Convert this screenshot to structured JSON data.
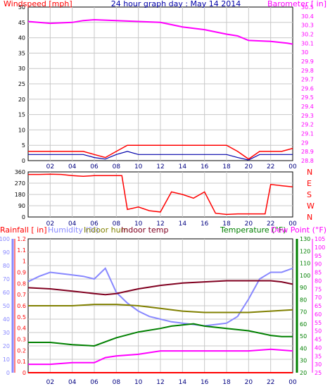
{
  "colors": {
    "wind": "#ff0000",
    "gust_line": "#0000aa",
    "baro": "#ff00ff",
    "title": "#0000aa",
    "direction": "#ff0000",
    "rain": "#ff0000",
    "humidity": "#8888ff",
    "indoor_hum": "#808000",
    "indoor_temp": "#800020",
    "temperature": "#008000",
    "dewpoint": "#ff00ff",
    "solar": "#ffff66",
    "grid": "#c8c8c8"
  },
  "chart_data": [
    {
      "type": "line",
      "title": "24 hour graph day : May 14 2014",
      "left_axis": {
        "label": "Windspeed [mph]",
        "ticks": [
          "0",
          "5",
          "10",
          "15",
          "20",
          "25",
          "30",
          "35",
          "40",
          "45",
          "50"
        ],
        "range": [
          0,
          50
        ]
      },
      "right_axis": {
        "label": "Barometer [ in]",
        "ticks": [
          "28.8",
          "28.9",
          "29",
          "29.1",
          "29.2",
          "29.3",
          "29.4",
          "29.5",
          "29.6",
          "29.7",
          "29.8",
          "29.9",
          "30",
          "30.1",
          "30.2",
          "30.3",
          "30.4",
          "30.5"
        ],
        "range": [
          28.8,
          30.5
        ]
      },
      "x_ticks": [
        "02",
        "04",
        "06",
        "08",
        "10",
        "12",
        "14",
        "16",
        "18",
        "20",
        "22",
        "00"
      ],
      "series": [
        {
          "axis": "right",
          "x": [
            0,
            2,
            4,
            5,
            6,
            8,
            10,
            12,
            14,
            16,
            18,
            19,
            20,
            22,
            23.5,
            24
          ],
          "values": [
            30.34,
            30.32,
            30.33,
            30.35,
            30.36,
            30.35,
            30.34,
            30.33,
            30.28,
            30.25,
            30.2,
            30.18,
            30.13,
            30.12,
            30.1,
            30.09
          ]
        },
        {
          "axis": "left",
          "x": [
            0,
            1,
            2,
            3,
            4,
            5,
            6,
            7,
            8,
            9,
            10,
            11,
            12,
            13,
            14,
            15,
            16,
            17,
            18,
            19,
            20,
            21,
            22,
            23,
            24
          ],
          "values": [
            3,
            3,
            3,
            3,
            3,
            3,
            2,
            1,
            3,
            5,
            5,
            5,
            5,
            5,
            5,
            5,
            5,
            5,
            5,
            3,
            0.5,
            3,
            3,
            3,
            4
          ]
        },
        {
          "axis": "left",
          "x": [
            0,
            1,
            2,
            3,
            4,
            5,
            6,
            7,
            8,
            9,
            10,
            11,
            12,
            13,
            14,
            15,
            16,
            17,
            18,
            19,
            20,
            21,
            22,
            23,
            24
          ],
          "values": [
            2,
            2,
            2,
            2,
            2,
            2,
            1,
            0.5,
            2,
            3,
            2,
            2,
            2,
            2,
            2,
            2,
            2,
            2,
            2,
            1,
            0.2,
            2,
            2,
            2,
            2
          ]
        }
      ]
    },
    {
      "type": "line",
      "left_ticks": [
        "0",
        "90",
        "180",
        "270",
        "360"
      ],
      "left_range": [
        0,
        360
      ],
      "right_labels": [
        "N",
        "W",
        "S",
        "E",
        "N"
      ],
      "x_ticks": [
        "02",
        "04",
        "06",
        "08",
        "10",
        "12",
        "14",
        "16",
        "18",
        "20",
        "22",
        "00"
      ],
      "series": [
        {
          "x": [
            0,
            1,
            2,
            3,
            4,
            5,
            6,
            7,
            8,
            8.5,
            9,
            10,
            11,
            12,
            13,
            14,
            15,
            16,
            17,
            18,
            19,
            20,
            21,
            21.5,
            22,
            23,
            24
          ],
          "values": [
            340,
            340,
            342,
            340,
            330,
            325,
            330,
            330,
            330,
            330,
            60,
            80,
            50,
            40,
            200,
            180,
            150,
            200,
            30,
            20,
            25,
            25,
            25,
            25,
            260,
            250,
            240
          ]
        }
      ]
    },
    {
      "type": "line",
      "labels": [
        "Rainfall [ in]",
        "Humidity (%)",
        "Indoor hum",
        "Indoor temp",
        "Temperature (°F)",
        "Dew Point (°F)"
      ],
      "rain_axis": {
        "ticks": [
          "0",
          "0.1",
          "0.2",
          "0.3",
          "0.4",
          "0.5",
          "0.6",
          "0.7",
          "0.8",
          "0.9",
          "1",
          "1.1",
          "1.2"
        ],
        "range": [
          0,
          1.2
        ]
      },
      "humidity_axis": {
        "ticks": [
          "0",
          "10",
          "20",
          "30",
          "40",
          "50",
          "60",
          "70",
          "80",
          "90",
          "100"
        ],
        "range": [
          0,
          100
        ]
      },
      "temp_axis": {
        "ticks": [
          "20",
          "30",
          "40",
          "50",
          "60",
          "70",
          "80",
          "90",
          "100",
          "110",
          "120",
          "130"
        ],
        "range": [
          20,
          135
        ]
      },
      "dew_axis": {
        "ticks": [
          "25",
          "30",
          "35",
          "40",
          "45",
          "50",
          "55",
          "60",
          "65",
          "70",
          "75",
          "80",
          "85",
          "90",
          "95",
          "100",
          "105"
        ],
        "range": [
          25,
          105
        ]
      },
      "x_ticks": [
        "02",
        "04",
        "06",
        "08",
        "10",
        "12",
        "14",
        "16",
        "18",
        "20",
        "22",
        "00"
      ],
      "series": [
        {
          "name": "Humidity (%)",
          "axis": "humidity",
          "x": [
            0,
            1,
            2,
            3,
            4,
            5,
            6,
            7,
            8,
            9,
            10,
            11,
            12,
            13,
            14,
            15,
            16,
            17,
            18,
            19,
            20,
            21,
            22,
            23,
            24
          ],
          "values": [
            68,
            72,
            75,
            74,
            73,
            72,
            70,
            78,
            60,
            52,
            46,
            42,
            40,
            38,
            37,
            36,
            35,
            36,
            37,
            42,
            55,
            70,
            75,
            75,
            78
          ]
        },
        {
          "name": "Indoor hum",
          "axis": "humidity",
          "x": [
            0,
            2,
            4,
            6,
            8,
            10,
            12,
            14,
            16,
            18,
            20,
            22,
            24
          ],
          "values": [
            50,
            50,
            50,
            51,
            51,
            50,
            48,
            46,
            45,
            45,
            45,
            46,
            47
          ]
        },
        {
          "name": "Indoor temp",
          "axis": "temp",
          "x": [
            0,
            2,
            4,
            6,
            7,
            8,
            10,
            12,
            14,
            16,
            18,
            20,
            21,
            22,
            23,
            24
          ],
          "values": [
            93,
            92,
            90,
            88,
            87,
            88,
            92,
            95,
            97,
            98,
            99,
            99,
            99,
            99,
            98,
            96
          ]
        },
        {
          "name": "Temperature (°F)",
          "axis": "temp",
          "x": [
            0,
            2,
            4,
            6,
            8,
            10,
            12,
            13,
            14,
            15,
            16,
            18,
            20,
            22,
            23,
            24
          ],
          "values": [
            46,
            46,
            44,
            43,
            50,
            55,
            58,
            60,
            61,
            62,
            60,
            58,
            56,
            52,
            51,
            51
          ]
        },
        {
          "name": "Dew Point (°F)",
          "axis": "dew",
          "x": [
            0,
            2,
            4,
            6,
            7,
            8,
            10,
            12,
            14,
            16,
            18,
            20,
            22,
            24
          ],
          "values": [
            30,
            30,
            31,
            31,
            34,
            35,
            36,
            38,
            38,
            38,
            38,
            38,
            39,
            38
          ]
        },
        {
          "name": "Rainfall [ in]",
          "axis": "rain",
          "x": [
            0,
            24
          ],
          "values": [
            0,
            0
          ]
        }
      ]
    }
  ]
}
